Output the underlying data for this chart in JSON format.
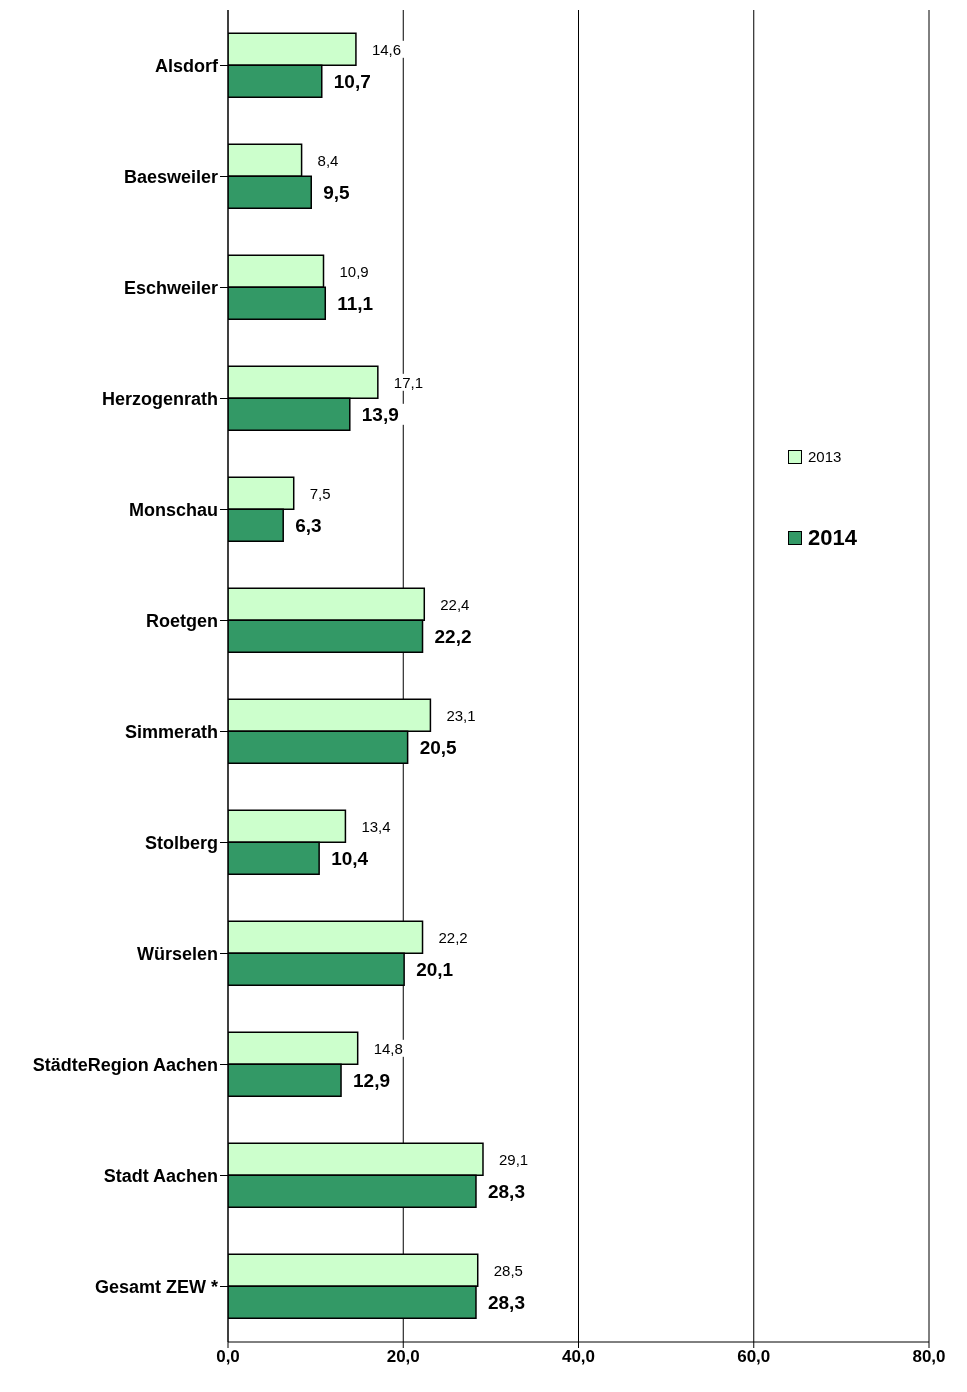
{
  "chart_data": {
    "type": "bar",
    "orientation": "horizontal",
    "categories": [
      "Alsdorf",
      "Baesweiler",
      "Eschweiler",
      "Herzogenrath",
      "Monschau",
      "Roetgen",
      "Simmerath",
      "Stolberg",
      "Würselen",
      "StädteRegion Aachen",
      "Stadt Aachen",
      "Gesamt ZEW *"
    ],
    "series": [
      {
        "name": "2013",
        "color": "#ccffcc",
        "values": [
          14.6,
          8.4,
          10.9,
          17.1,
          7.5,
          22.4,
          23.1,
          13.4,
          22.2,
          14.8,
          29.1,
          28.5
        ],
        "value_labels": [
          "14,6",
          "8,4",
          "10,9",
          "17,1",
          "7,5",
          "22,4",
          "23,1",
          "13,4",
          "22,2",
          "14,8",
          "29,1",
          "28,5"
        ]
      },
      {
        "name": "2014",
        "color": "#339966",
        "values": [
          10.7,
          9.5,
          11.1,
          13.9,
          6.3,
          22.2,
          20.5,
          10.4,
          20.1,
          12.9,
          28.3,
          28.3
        ],
        "value_labels": [
          "10,7",
          "9,5",
          "11,1",
          "13,9",
          "6,3",
          "22,2",
          "20,5",
          "10,4",
          "20,1",
          "12,9",
          "28,3",
          "28,3"
        ]
      }
    ],
    "xlim": [
      0,
      80
    ],
    "xticks": [
      {
        "value": 0,
        "label": "0,0"
      },
      {
        "value": 20,
        "label": "20,0"
      },
      {
        "value": 40,
        "label": "40,0"
      },
      {
        "value": 60,
        "label": "60,0"
      },
      {
        "value": 80,
        "label": "80,0"
      }
    ],
    "grid": "x",
    "legend": "right"
  }
}
